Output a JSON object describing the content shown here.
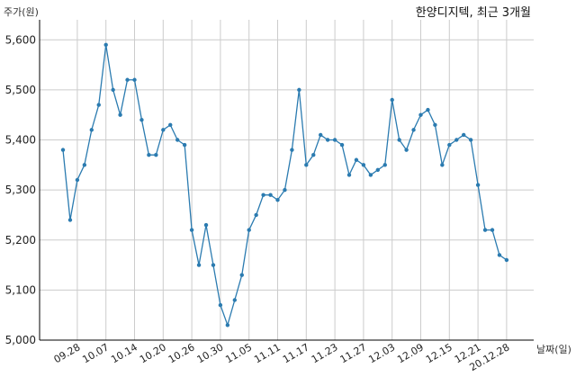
{
  "chart_data": {
    "type": "line",
    "title": "한양디지텍, 최근 3개월",
    "ylabel": "주가(원)",
    "xlabel": "날짜(일)",
    "ylim": [
      5000,
      5640
    ],
    "y_ticks": [
      5000,
      5100,
      5200,
      5300,
      5400,
      5500,
      5600
    ],
    "y_tick_labels": [
      "5,000",
      "5,100",
      "5,200",
      "5,300",
      "5,400",
      "5,500",
      "5,600"
    ],
    "x_tick_labels": [
      "09.28",
      "10.07",
      "10.14",
      "10.20",
      "10.26",
      "10.30",
      "11.05",
      "11.11",
      "11.17",
      "11.23",
      "11.27",
      "12.03",
      "12.09",
      "12.15",
      "12.21",
      "20.12.28"
    ],
    "x_tick_index": [
      2,
      6,
      10,
      14,
      18,
      22,
      26,
      30,
      34,
      38,
      42,
      46,
      50,
      54,
      58,
      62
    ],
    "grid": true,
    "series": [
      {
        "color": "#2b7bb0",
        "values": [
          5380,
          5240,
          5320,
          5350,
          5420,
          5470,
          5590,
          5500,
          5450,
          5520,
          5520,
          5440,
          5370,
          5370,
          5420,
          5430,
          5400,
          5390,
          5220,
          5150,
          5230,
          5150,
          5070,
          5030,
          5080,
          5130,
          5220,
          5250,
          5290,
          5290,
          5280,
          5300,
          5380,
          5500,
          5350,
          5370,
          5410,
          5400,
          5400,
          5390,
          5330,
          5360,
          5350,
          5330,
          5340,
          5350,
          5480,
          5400,
          5380,
          5420,
          5450,
          5460,
          5430,
          5350,
          5390,
          5400,
          5410,
          5400,
          5310,
          5220,
          5220,
          5170,
          5160
        ]
      }
    ]
  }
}
